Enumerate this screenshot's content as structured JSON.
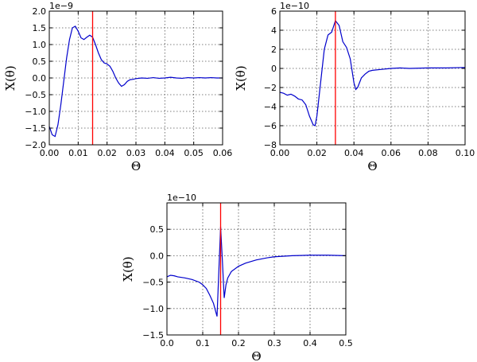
{
  "chart_data": [
    {
      "type": "line",
      "title": "",
      "xlabel": "Θ",
      "ylabel": "X(θ)",
      "multiplier": "1e−9",
      "xlim": [
        0.0,
        0.06
      ],
      "ylim": [
        -2.0,
        2.0
      ],
      "xticks": [
        0.0,
        0.01,
        0.02,
        0.03,
        0.04,
        0.05,
        0.06
      ],
      "xtick_labels": [
        "0.00",
        "0.01",
        "0.02",
        "0.03",
        "0.04",
        "0.05",
        "0.06"
      ],
      "yticks": [
        -2.0,
        -1.5,
        -1.0,
        -0.5,
        0.0,
        0.5,
        1.0,
        1.5,
        2.0
      ],
      "ytick_labels": [
        "−2.0",
        "−1.5",
        "−1.0",
        "−0.5",
        "0.0",
        "0.5",
        "1.0",
        "1.5",
        "2.0"
      ],
      "grid": true,
      "vline_x": 0.015,
      "colors": {
        "curve": "#0000cc",
        "vline": "#ff0000"
      },
      "series": [
        {
          "x": [
            0.0,
            0.001,
            0.002,
            0.003,
            0.004,
            0.005,
            0.006,
            0.007,
            0.008,
            0.009,
            0.01,
            0.011,
            0.012,
            0.013,
            0.014,
            0.015,
            0.016,
            0.017,
            0.018,
            0.019,
            0.02,
            0.021,
            0.022,
            0.023,
            0.024,
            0.025,
            0.026,
            0.027,
            0.028,
            0.029,
            0.03,
            0.032,
            0.034,
            0.036,
            0.038,
            0.04,
            0.042,
            0.044,
            0.046,
            0.048,
            0.05,
            0.052,
            0.054,
            0.056,
            0.058,
            0.06
          ],
          "y": [
            -1.45,
            -1.7,
            -1.75,
            -1.4,
            -0.8,
            -0.1,
            0.6,
            1.15,
            1.5,
            1.55,
            1.4,
            1.2,
            1.15,
            1.22,
            1.28,
            1.22,
            1.0,
            0.75,
            0.55,
            0.45,
            0.42,
            0.35,
            0.2,
            0.0,
            -0.15,
            -0.25,
            -0.2,
            -0.1,
            -0.05,
            -0.04,
            -0.02,
            0.0,
            -0.01,
            0.01,
            -0.01,
            0.0,
            0.02,
            0.0,
            -0.01,
            0.01,
            0.0,
            0.01,
            0.0,
            0.01,
            0.0,
            0.0
          ]
        }
      ]
    },
    {
      "type": "line",
      "title": "",
      "xlabel": "Θ",
      "ylabel": "X(θ)",
      "multiplier": "1e−10",
      "xlim": [
        0.0,
        0.1
      ],
      "ylim": [
        -8.0,
        6.0
      ],
      "xticks": [
        0.0,
        0.02,
        0.04,
        0.06,
        0.08,
        0.1
      ],
      "xtick_labels": [
        "0.00",
        "0.02",
        "0.04",
        "0.06",
        "0.08",
        "0.10"
      ],
      "yticks": [
        -8,
        -6,
        -4,
        -2,
        0,
        2,
        4,
        6
      ],
      "ytick_labels": [
        "−8",
        "−6",
        "−4",
        "−2",
        "0",
        "2",
        "4",
        "6"
      ],
      "grid": true,
      "vline_x": 0.03,
      "colors": {
        "curve": "#0000cc",
        "vline": "#ff0000"
      },
      "series": [
        {
          "x": [
            0.0,
            0.002,
            0.004,
            0.006,
            0.008,
            0.01,
            0.012,
            0.014,
            0.016,
            0.018,
            0.019,
            0.02,
            0.022,
            0.024,
            0.026,
            0.028,
            0.03,
            0.032,
            0.034,
            0.036,
            0.038,
            0.04,
            0.041,
            0.042,
            0.044,
            0.046,
            0.048,
            0.05,
            0.055,
            0.06,
            0.065,
            0.07,
            0.08,
            0.09,
            0.1
          ],
          "y": [
            -2.5,
            -2.6,
            -2.8,
            -2.7,
            -2.9,
            -3.2,
            -3.3,
            -3.8,
            -5.0,
            -5.9,
            -6.0,
            -5.0,
            -1.5,
            2.0,
            3.5,
            3.8,
            5.0,
            4.5,
            2.8,
            2.2,
            1.0,
            -1.5,
            -2.2,
            -2.0,
            -1.0,
            -0.6,
            -0.3,
            -0.2,
            -0.1,
            0.0,
            0.05,
            0.0,
            0.05,
            0.05,
            0.1
          ]
        }
      ]
    },
    {
      "type": "line",
      "title": "",
      "xlabel": "Θ",
      "ylabel": "X(θ)",
      "multiplier": "1e−10",
      "xlim": [
        0.0,
        0.5
      ],
      "ylim": [
        -1.5,
        1.0
      ],
      "xticks": [
        0.0,
        0.1,
        0.2,
        0.3,
        0.4,
        0.5
      ],
      "xtick_labels": [
        "0.0",
        "0.1",
        "0.2",
        "0.3",
        "0.4",
        "0.5"
      ],
      "yticks": [
        -1.5,
        -1.0,
        -0.5,
        0.0,
        0.5
      ],
      "ytick_labels": [
        "−1.5",
        "−1.0",
        "−0.5",
        "0.0",
        "0.5"
      ],
      "grid": true,
      "vline_x": 0.15,
      "colors": {
        "curve": "#0000cc",
        "vline": "#ff0000"
      },
      "series": [
        {
          "x": [
            0.0,
            0.01,
            0.02,
            0.03,
            0.05,
            0.07,
            0.09,
            0.1,
            0.11,
            0.12,
            0.13,
            0.14,
            0.145,
            0.15,
            0.155,
            0.16,
            0.165,
            0.17,
            0.18,
            0.2,
            0.22,
            0.25,
            0.28,
            0.3,
            0.35,
            0.4,
            0.45,
            0.5
          ],
          "y": [
            -0.4,
            -0.37,
            -0.38,
            -0.4,
            -0.42,
            -0.45,
            -0.5,
            -0.55,
            -0.62,
            -0.75,
            -0.9,
            -1.15,
            -0.3,
            0.55,
            -0.1,
            -0.8,
            -0.55,
            -0.42,
            -0.3,
            -0.2,
            -0.14,
            -0.08,
            -0.04,
            -0.02,
            0.0,
            0.01,
            0.01,
            0.0
          ]
        }
      ]
    }
  ]
}
